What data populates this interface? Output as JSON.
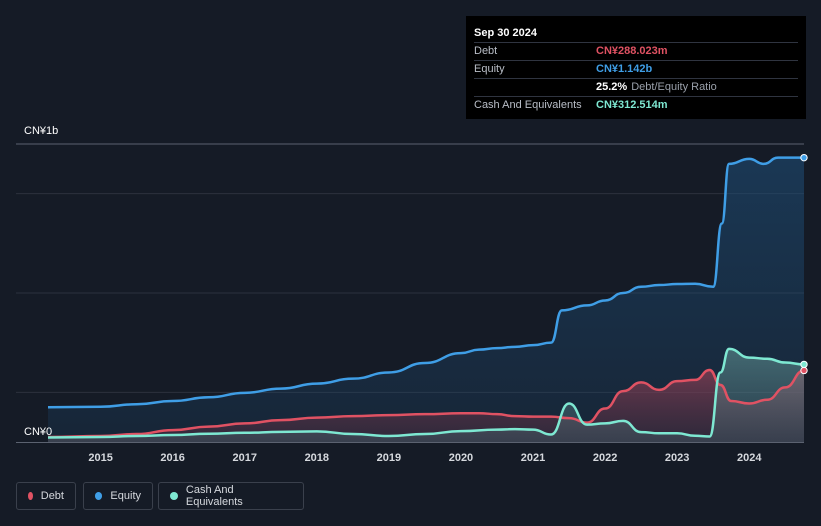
{
  "tooltip": {
    "date": "Sep 30 2024",
    "rows": [
      {
        "label": "Debt",
        "value": "CN¥288.023m",
        "color": "#e05263"
      },
      {
        "label": "Equity",
        "value": "CN¥1.142b",
        "color": "#3f9ee6"
      },
      {
        "label": "",
        "value": "25.2%",
        "extra": "Debt/Equity Ratio",
        "color": "#ffffff"
      },
      {
        "label": "Cash And Equivalents",
        "value": "CN¥312.514m",
        "color": "#7ee8d2"
      }
    ]
  },
  "legend": [
    {
      "label": "Debt",
      "color": "#e05263"
    },
    {
      "label": "Equity",
      "color": "#3f9ee6"
    },
    {
      "label": "Cash And Equivalents",
      "color": "#7ee8d2"
    }
  ],
  "chart_data": {
    "type": "area",
    "y_top_label": "CN¥1b",
    "y_bottom_label": "CN¥0",
    "ylim": [
      0,
      1.2
    ],
    "xlim": [
      2014.27,
      2024.76
    ],
    "x_ticks": [
      "2015",
      "2016",
      "2017",
      "2018",
      "2019",
      "2020",
      "2021",
      "2022",
      "2023",
      "2024"
    ],
    "grid": true,
    "series": [
      {
        "name": "Equity",
        "color": "#3f9ee6",
        "points": [
          [
            2014.27,
            0.14
          ],
          [
            2015.0,
            0.142
          ],
          [
            2015.5,
            0.152
          ],
          [
            2016.0,
            0.165
          ],
          [
            2016.5,
            0.18
          ],
          [
            2017.0,
            0.198
          ],
          [
            2017.5,
            0.215
          ],
          [
            2018.0,
            0.235
          ],
          [
            2018.5,
            0.255
          ],
          [
            2019.0,
            0.28
          ],
          [
            2019.5,
            0.318
          ],
          [
            2020.0,
            0.358
          ],
          [
            2020.25,
            0.372
          ],
          [
            2020.5,
            0.378
          ],
          [
            2020.75,
            0.383
          ],
          [
            2021.0,
            0.39
          ],
          [
            2021.25,
            0.4
          ],
          [
            2021.4,
            0.53
          ],
          [
            2021.75,
            0.55
          ],
          [
            2022.0,
            0.57
          ],
          [
            2022.25,
            0.6
          ],
          [
            2022.5,
            0.625
          ],
          [
            2022.75,
            0.632
          ],
          [
            2023.0,
            0.636
          ],
          [
            2023.25,
            0.637
          ],
          [
            2023.5,
            0.625
          ],
          [
            2023.62,
            0.88
          ],
          [
            2023.72,
            1.12
          ],
          [
            2024.0,
            1.14
          ],
          [
            2024.2,
            1.12
          ],
          [
            2024.4,
            1.145
          ],
          [
            2024.76,
            1.145
          ]
        ]
      },
      {
        "name": "Debt",
        "color": "#e05263",
        "points": [
          [
            2014.27,
            0.02
          ],
          [
            2015.0,
            0.024
          ],
          [
            2015.5,
            0.032
          ],
          [
            2016.0,
            0.048
          ],
          [
            2016.5,
            0.062
          ],
          [
            2017.0,
            0.075
          ],
          [
            2017.5,
            0.088
          ],
          [
            2018.0,
            0.098
          ],
          [
            2018.5,
            0.104
          ],
          [
            2019.0,
            0.108
          ],
          [
            2019.5,
            0.112
          ],
          [
            2020.0,
            0.116
          ],
          [
            2020.25,
            0.116
          ],
          [
            2020.5,
            0.112
          ],
          [
            2020.75,
            0.104
          ],
          [
            2021.0,
            0.102
          ],
          [
            2021.25,
            0.102
          ],
          [
            2021.5,
            0.096
          ],
          [
            2021.75,
            0.078
          ],
          [
            2022.0,
            0.135
          ],
          [
            2022.25,
            0.205
          ],
          [
            2022.5,
            0.24
          ],
          [
            2022.75,
            0.21
          ],
          [
            2023.0,
            0.245
          ],
          [
            2023.25,
            0.25
          ],
          [
            2023.45,
            0.29
          ],
          [
            2023.6,
            0.23
          ],
          [
            2023.75,
            0.165
          ],
          [
            2024.0,
            0.155
          ],
          [
            2024.25,
            0.17
          ],
          [
            2024.5,
            0.22
          ],
          [
            2024.76,
            0.288
          ]
        ]
      },
      {
        "name": "Cash And Equivalents",
        "color": "#7ee8d2",
        "points": [
          [
            2014.27,
            0.018
          ],
          [
            2015.0,
            0.02
          ],
          [
            2015.5,
            0.024
          ],
          [
            2016.0,
            0.028
          ],
          [
            2016.5,
            0.033
          ],
          [
            2017.0,
            0.037
          ],
          [
            2017.5,
            0.041
          ],
          [
            2018.0,
            0.043
          ],
          [
            2018.5,
            0.032
          ],
          [
            2019.0,
            0.024
          ],
          [
            2019.5,
            0.032
          ],
          [
            2020.0,
            0.044
          ],
          [
            2020.5,
            0.05
          ],
          [
            2020.75,
            0.052
          ],
          [
            2021.0,
            0.05
          ],
          [
            2021.25,
            0.03
          ],
          [
            2021.5,
            0.155
          ],
          [
            2021.75,
            0.07
          ],
          [
            2022.0,
            0.075
          ],
          [
            2022.25,
            0.085
          ],
          [
            2022.5,
            0.04
          ],
          [
            2022.75,
            0.035
          ],
          [
            2023.0,
            0.035
          ],
          [
            2023.25,
            0.025
          ],
          [
            2023.45,
            0.022
          ],
          [
            2023.6,
            0.28
          ],
          [
            2023.72,
            0.375
          ],
          [
            2024.0,
            0.34
          ],
          [
            2024.25,
            0.335
          ],
          [
            2024.5,
            0.32
          ],
          [
            2024.76,
            0.3125
          ]
        ]
      }
    ]
  }
}
